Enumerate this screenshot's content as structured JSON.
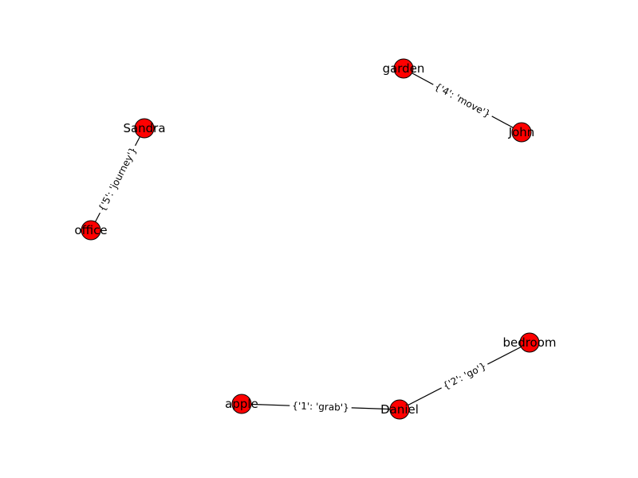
{
  "graph": {
    "node_color": "#ff0000",
    "node_stroke_color": "#000000",
    "edge_color": "#000000",
    "label_background": "#ffffff",
    "nodes": [
      {
        "id": "garden",
        "label": "garden"
      },
      {
        "id": "John",
        "label": "John"
      },
      {
        "id": "Sandra",
        "label": "Sandra"
      },
      {
        "id": "office",
        "label": "office"
      },
      {
        "id": "bedroom",
        "label": "bedroom"
      },
      {
        "id": "Daniel",
        "label": "Daniel"
      },
      {
        "id": "apple",
        "label": "apple"
      }
    ],
    "edges": [
      {
        "source": "garden",
        "target": "John",
        "label": "{'4': 'move'}"
      },
      {
        "source": "Sandra",
        "target": "office",
        "label": "{'5': 'journey'}"
      },
      {
        "source": "bedroom",
        "target": "Daniel",
        "label": "{'2': 'go'}"
      },
      {
        "source": "apple",
        "target": "Daniel",
        "label": "{'1': 'grab'}"
      }
    ]
  }
}
